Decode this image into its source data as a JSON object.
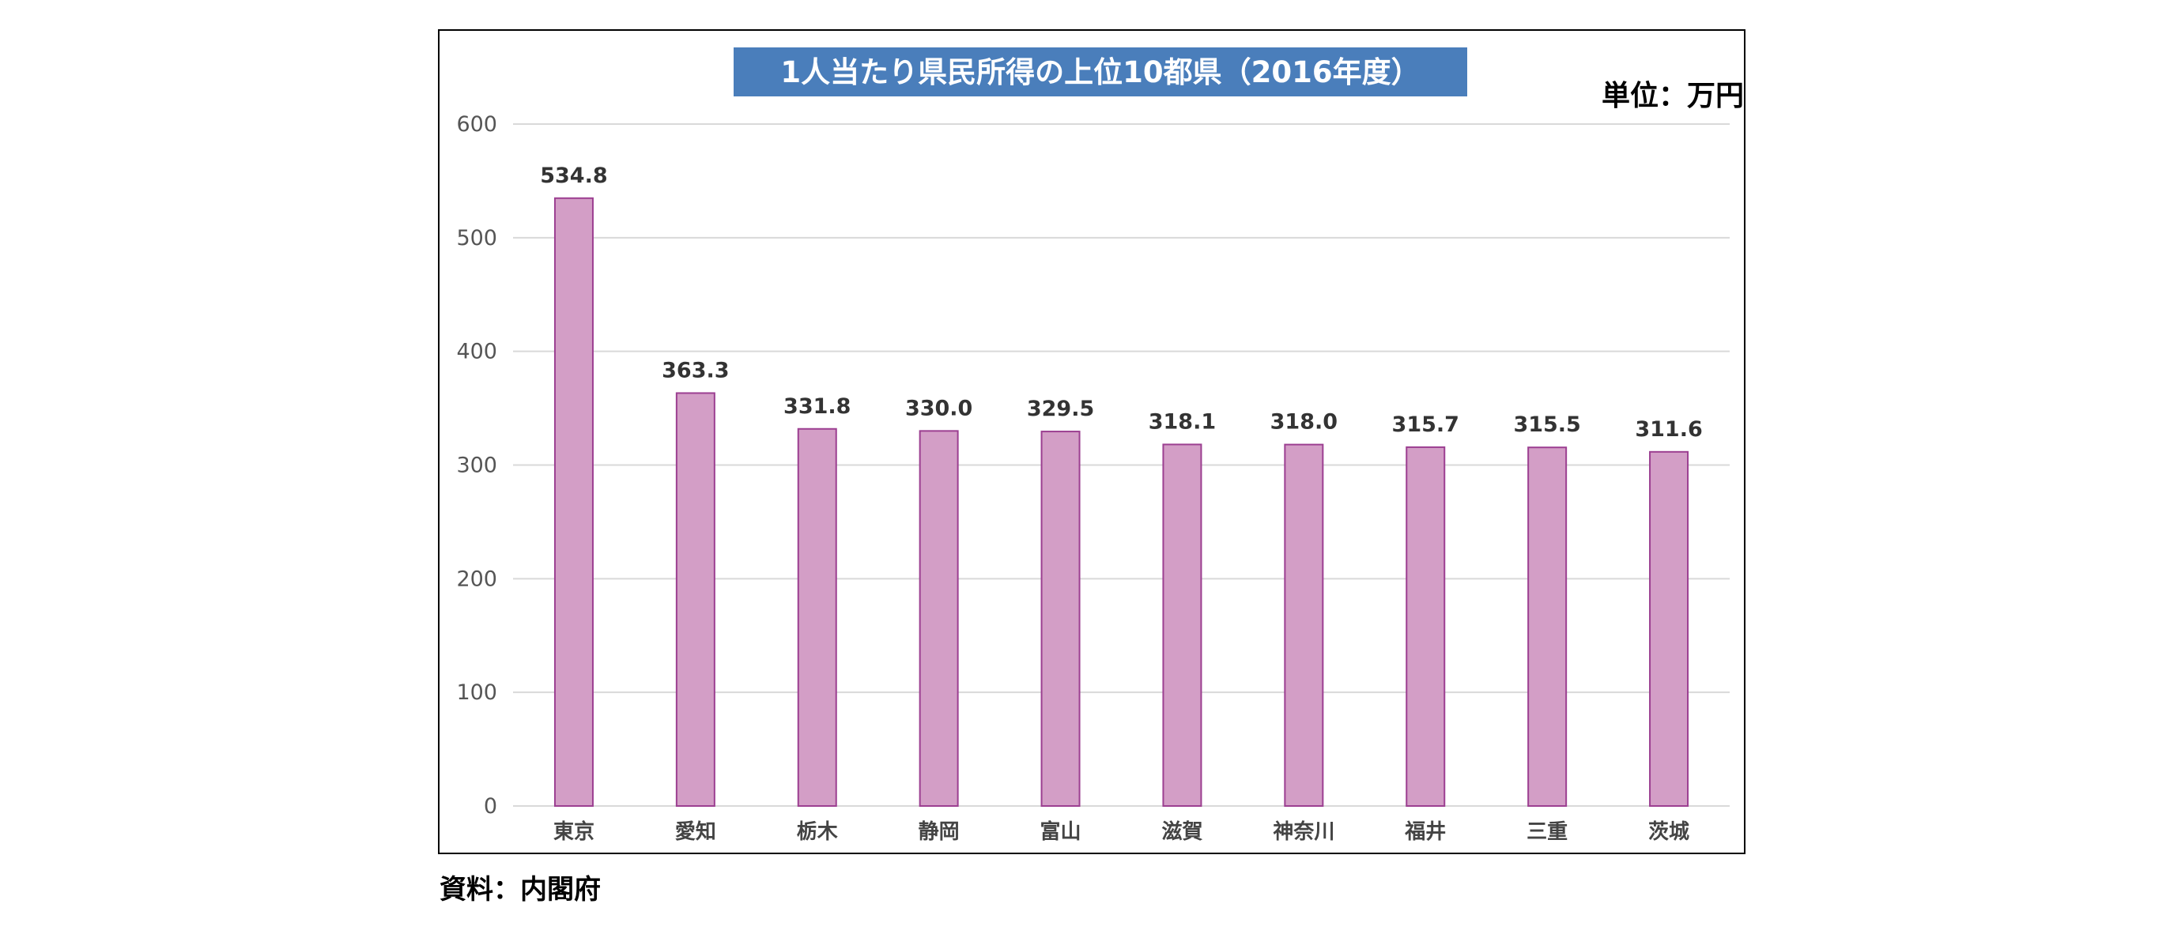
{
  "colors": {
    "bar_fill": "#d39ec6",
    "bar_stroke": "#9c3f91",
    "title_bg": "#4a7ebb",
    "grid": "#d9d9d9"
  },
  "chart_data": {
    "type": "bar",
    "title": "1人当たり県民所得の上位10都県（2016年度）",
    "unit": "単位：万円",
    "categories": [
      "東京",
      "愛知",
      "栃木",
      "静岡",
      "富山",
      "滋賀",
      "神奈川",
      "福井",
      "三重",
      "茨城"
    ],
    "values": [
      534.8,
      363.3,
      331.8,
      330.0,
      329.5,
      318.1,
      318.0,
      315.7,
      315.5,
      311.6
    ],
    "value_labels": [
      "534.8",
      "363.3",
      "331.8",
      "330.0",
      "329.5",
      "318.1",
      "318.0",
      "315.7",
      "315.5",
      "311.6"
    ],
    "yticks": [
      0,
      100,
      200,
      300,
      400,
      500,
      600
    ],
    "ylim": [
      0,
      600
    ],
    "grid": true,
    "legend": "none"
  },
  "source": "資料：内閣府"
}
